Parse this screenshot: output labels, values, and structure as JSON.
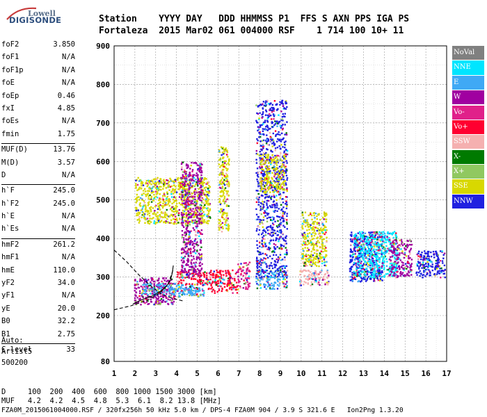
{
  "logo": {
    "line1": "Lowell",
    "line2": "DIGISONDE"
  },
  "header": {
    "row1": "Station    YYYY DAY   DDD HHMMSS P1  FFS S AXN PPS IGA PS",
    "row2": "Fortaleza  2015 Mar02 061 004000 RSF    1 714 100 10+ 11"
  },
  "params": [
    {
      "label": "foF2",
      "value": "3.850"
    },
    {
      "label": "foF1",
      "value": "N/A"
    },
    {
      "label": "foF1p",
      "value": "N/A"
    },
    {
      "label": "foE",
      "value": "N/A"
    },
    {
      "label": "foEp",
      "value": "0.46"
    },
    {
      "label": "fxI",
      "value": "4.85"
    },
    {
      "label": "foEs",
      "value": "N/A"
    },
    {
      "label": "fmin",
      "value": "1.75"
    },
    {
      "label": "MUF(D)",
      "value": "13.76"
    },
    {
      "label": "M(D)",
      "value": "3.57"
    },
    {
      "label": "D",
      "value": "N/A"
    },
    {
      "label": "h`F",
      "value": "245.0"
    },
    {
      "label": "h`F2",
      "value": "245.0"
    },
    {
      "label": "h`E",
      "value": "N/A"
    },
    {
      "label": "h`Es",
      "value": "N/A"
    },
    {
      "label": "hmF2",
      "value": "261.2"
    },
    {
      "label": "hmF1",
      "value": "N/A"
    },
    {
      "label": "hmE",
      "value": "110.0"
    },
    {
      "label": "yF2",
      "value": "34.0"
    },
    {
      "label": "yF1",
      "value": "N/A"
    },
    {
      "label": "yE",
      "value": "20.0"
    },
    {
      "label": "B0",
      "value": "32.2"
    },
    {
      "label": "B1",
      "value": "2.75"
    },
    {
      "label": "C-level",
      "value": "33"
    }
  ],
  "autoscaling": {
    "line1": "Auto:",
    "line2": "Artist5",
    "line3": "500200"
  },
  "bottom": {
    "d_row": "D     100  200  400  600  800 1000 1500 3000 [km]",
    "muf_row": "MUF   4.2  4.2  4.5  4.8  5.3  6.1  8.2 13.8 [MHz]",
    "footer": "FZA0M_2015061004000.RSF / 320fx256h 50 kHz 5.0 km / DPS-4 FZA0M 904 / 3.9 S 321.6 E   Ion2Png 1.3.20"
  },
  "legend": [
    {
      "label": "NoVal",
      "color": "#808080"
    },
    {
      "label": "NNE",
      "color": "#00e5ff"
    },
    {
      "label": "E",
      "color": "#3fa9f5"
    },
    {
      "label": "W",
      "color": "#a000a0"
    },
    {
      "label": "Vo-",
      "color": "#e0208a"
    },
    {
      "label": "Vo+",
      "color": "#ff0030"
    },
    {
      "label": "SSW",
      "color": "#f5b0b0"
    },
    {
      "label": "X-",
      "color": "#007a00"
    },
    {
      "label": "X+",
      "color": "#90c860"
    },
    {
      "label": "SSE",
      "color": "#d8d800"
    },
    {
      "label": "NNW",
      "color": "#2020e0"
    }
  ],
  "chart_data": {
    "type": "scatter",
    "x_ticks": [
      1,
      2,
      3,
      4,
      5,
      6,
      7,
      8,
      9,
      10,
      11,
      12,
      13,
      14,
      15,
      16,
      17
    ],
    "y_ticks": [
      80,
      200,
      300,
      400,
      500,
      600,
      700,
      800,
      900
    ],
    "xlim": [
      1,
      17
    ],
    "ylim": [
      80,
      900
    ],
    "grid": true,
    "clusters": [
      {
        "x": [
          1.95,
          3.9
        ],
        "y": [
          230,
          300
        ],
        "color": "#a000a0"
      },
      {
        "x": [
          2.3,
          4.8
        ],
        "y": [
          255,
          285
        ],
        "color": "#3fa9f5"
      },
      {
        "x": [
          3.6,
          5.3
        ],
        "y": [
          250,
          275
        ],
        "color": "#3fa9f5"
      },
      {
        "x": [
          4.0,
          5.5
        ],
        "y": [
          280,
          320
        ],
        "color": "#ff0030"
      },
      {
        "x": [
          2.0,
          5.6
        ],
        "y": [
          440,
          560
        ],
        "color": "#d8d800"
      },
      {
        "x": [
          4.2,
          5.2
        ],
        "y": [
          300,
          600
        ],
        "color": "#a000a0"
      },
      {
        "x": [
          5.5,
          6.9
        ],
        "y": [
          260,
          320
        ],
        "color": "#ff0030"
      },
      {
        "x": [
          6.0,
          6.5
        ],
        "y": [
          420,
          640
        ],
        "color": "#d8d800"
      },
      {
        "x": [
          6.9,
          7.5
        ],
        "y": [
          270,
          340
        ],
        "color": "#e0208a"
      },
      {
        "x": [
          7.8,
          9.3
        ],
        "y": [
          270,
          320
        ],
        "color": "#3fa9f5"
      },
      {
        "x": [
          7.8,
          9.3
        ],
        "y": [
          300,
          760
        ],
        "color": "#2020e0"
      },
      {
        "x": [
          8.0,
          9.2
        ],
        "y": [
          520,
          620
        ],
        "color": "#d8d800"
      },
      {
        "x": [
          9.9,
          11.3
        ],
        "y": [
          280,
          320
        ],
        "color": "#f5b0b0"
      },
      {
        "x": [
          10.0,
          11.2
        ],
        "y": [
          330,
          470
        ],
        "color": "#d8d800"
      },
      {
        "x": [
          12.3,
          13.9
        ],
        "y": [
          290,
          420
        ],
        "color": "#2020e0"
      },
      {
        "x": [
          12.5,
          14.6
        ],
        "y": [
          300,
          420
        ],
        "color": "#00e5ff"
      },
      {
        "x": [
          14.2,
          15.3
        ],
        "y": [
          300,
          400
        ],
        "color": "#a000a0"
      },
      {
        "x": [
          15.5,
          16.9
        ],
        "y": [
          300,
          370
        ],
        "color": "#2020e0"
      }
    ],
    "traces": [
      {
        "points": [
          [
            1.9,
            230
          ],
          [
            2.3,
            240
          ],
          [
            2.8,
            250
          ],
          [
            3.2,
            262
          ],
          [
            3.5,
            275
          ],
          [
            3.7,
            290
          ],
          [
            3.8,
            310
          ],
          [
            3.85,
            330
          ]
        ],
        "color": "#000"
      },
      {
        "points": [
          [
            1.0,
            370
          ],
          [
            1.6,
            340
          ],
          [
            2.2,
            305
          ],
          [
            2.8,
            275
          ],
          [
            3.3,
            255
          ],
          [
            3.8,
            245
          ],
          [
            4.3,
            238
          ]
        ],
        "color": "#000",
        "dashed": true
      },
      {
        "points": [
          [
            1.0,
            215
          ],
          [
            1.8,
            225
          ],
          [
            2.6,
            240
          ],
          [
            3.2,
            258
          ],
          [
            3.6,
            282
          ],
          [
            3.85,
            320
          ]
        ],
        "color": "#000",
        "dashed": true
      }
    ]
  }
}
